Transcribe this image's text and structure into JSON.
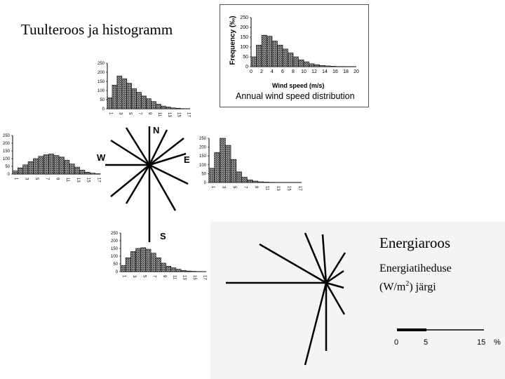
{
  "titles": {
    "main": "Tuulteroos ja histogramm",
    "energy": "Energiaroos",
    "energy_density": "Energiatiheduse",
    "energy_unit_a": "(W/m",
    "energy_unit_sup": "2",
    "energy_unit_b": ") järgi"
  },
  "compass": {
    "north": "N",
    "east": "E",
    "south": "S",
    "west": "W"
  },
  "scale_bar": {
    "labels": [
      "0",
      "5",
      "15"
    ],
    "unit": "%"
  },
  "chart_data": [
    {
      "type": "bar",
      "id": "annual",
      "title": "Annual wind speed distribution",
      "xlabel": "Wind speed (m/s)",
      "ylabel": "Frequency (‰)",
      "ylim": [
        0,
        250
      ],
      "yticks": [
        "0",
        "50",
        "100",
        "150",
        "200",
        "250"
      ],
      "xticks": [
        "0",
        "2",
        "4",
        "6",
        "8",
        "10",
        "12",
        "14",
        "16",
        "18",
        "20"
      ],
      "values": [
        50,
        110,
        160,
        155,
        130,
        110,
        90,
        70,
        50,
        35,
        25,
        15,
        10,
        6,
        4,
        2,
        1,
        1,
        0,
        0
      ]
    },
    {
      "type": "bar",
      "id": "north",
      "ylim": [
        0,
        250
      ],
      "yticks": [
        "0",
        "50",
        "100",
        "150",
        "200",
        "250"
      ],
      "xticks": [
        "1",
        "3",
        "5",
        "7",
        "9",
        "11",
        "13",
        "15",
        "17"
      ],
      "values": [
        60,
        130,
        180,
        165,
        140,
        110,
        90,
        70,
        55,
        40,
        25,
        15,
        10,
        5,
        3,
        1,
        0
      ]
    },
    {
      "type": "bar",
      "id": "west",
      "ylim": [
        0,
        250
      ],
      "yticks": [
        "0",
        "50",
        "100",
        "150",
        "200",
        "250"
      ],
      "xticks": [
        "1",
        "3",
        "5",
        "7",
        "9",
        "11",
        "13",
        "15",
        "17"
      ],
      "values": [
        20,
        40,
        60,
        80,
        100,
        115,
        125,
        130,
        120,
        110,
        90,
        65,
        45,
        25,
        12,
        6,
        2
      ]
    },
    {
      "type": "bar",
      "id": "east",
      "ylim": [
        0,
        250
      ],
      "yticks": [
        "0",
        "50",
        "100",
        "150",
        "200",
        "250"
      ],
      "xticks": [
        "1",
        "3",
        "5",
        "7",
        "9",
        "11",
        "13",
        "15",
        "17"
      ],
      "values": [
        80,
        170,
        250,
        210,
        130,
        60,
        30,
        15,
        8,
        4,
        2,
        1,
        0,
        0,
        0,
        0,
        0
      ]
    },
    {
      "type": "bar",
      "id": "south",
      "ylim": [
        0,
        250
      ],
      "yticks": [
        "0",
        "50",
        "100",
        "150",
        "200",
        "250"
      ],
      "xticks": [
        "1",
        "3",
        "5",
        "7",
        "9",
        "11",
        "13",
        "15",
        "17"
      ],
      "values": [
        40,
        90,
        130,
        150,
        155,
        145,
        120,
        90,
        55,
        35,
        25,
        15,
        8,
        4,
        2,
        1,
        0
      ]
    }
  ]
}
